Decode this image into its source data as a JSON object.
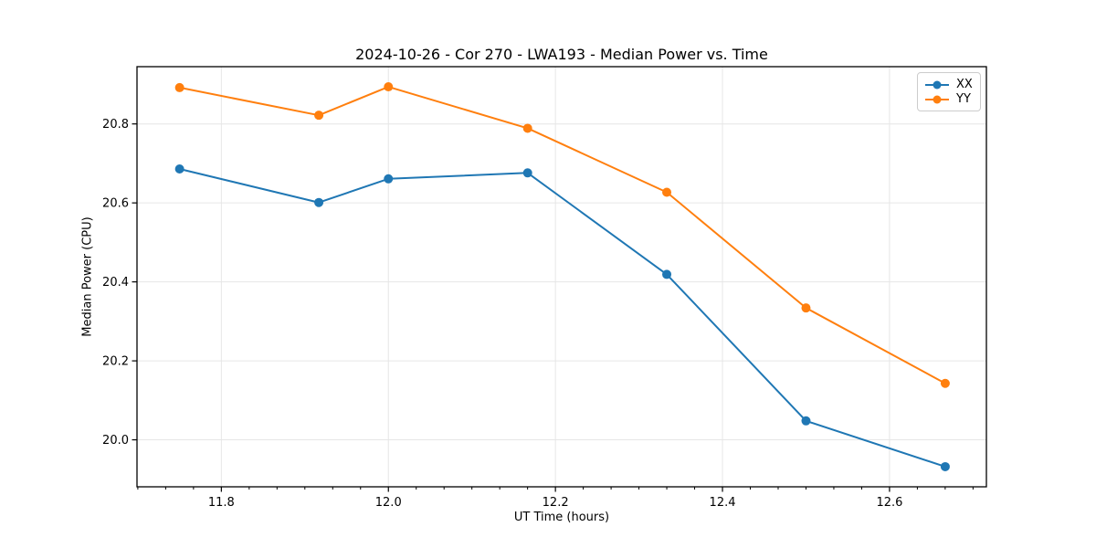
{
  "page": {
    "background": "#ffffff"
  },
  "chart_data": {
    "type": "line",
    "title": "2024-10-26 - Cor 270 - LWA193 - Median Power vs. Time",
    "xlabel": "UT Time (hours)",
    "ylabel": "Median Power (CPU)",
    "x": [
      11.75,
      11.9167,
      12.0,
      12.1667,
      12.3333,
      12.5,
      12.6667
    ],
    "series": [
      {
        "name": "XX",
        "color": "#1f77b4",
        "values": [
          20.686,
          20.601,
          20.661,
          20.676,
          20.419,
          20.048,
          19.932
        ]
      },
      {
        "name": "YY",
        "color": "#ff7f0e",
        "values": [
          20.892,
          20.822,
          20.894,
          20.789,
          20.627,
          20.334,
          20.143
        ]
      }
    ],
    "xlim": [
      11.699,
      12.716
    ],
    "ylim": [
      19.881,
      20.945
    ],
    "xticks": [
      11.8,
      12.0,
      12.2,
      12.4,
      12.6
    ],
    "xtick_labels": [
      "11.8",
      "12.0",
      "12.2",
      "12.4",
      "12.6"
    ],
    "yticks": [
      20.0,
      20.2,
      20.4,
      20.6,
      20.8
    ],
    "ytick_labels": [
      "20.0",
      "20.2",
      "20.4",
      "20.6",
      "20.8"
    ],
    "x_minor_step": 0.0333333,
    "x_major_step": 0.2,
    "grid": true,
    "legend": {
      "position": "upper right",
      "entries": [
        "XX",
        "YY"
      ]
    },
    "colors": {
      "grid": "#e6e6e6",
      "spine": "#000000",
      "text": "#000000"
    },
    "style": {
      "line_width": 2,
      "marker_radius": 5
    }
  }
}
